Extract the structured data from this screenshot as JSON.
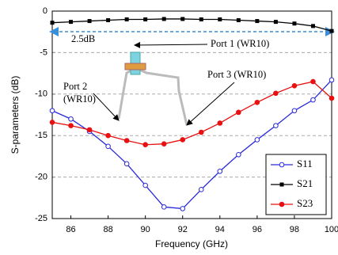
{
  "chart_data": {
    "type": "line",
    "x_label": "Frequency (GHz)",
    "y_label": "S-parameters (dB)",
    "x": [
      85,
      86,
      87,
      88,
      89,
      90,
      91,
      92,
      93,
      94,
      95,
      96,
      97,
      98,
      99,
      100
    ],
    "series": [
      {
        "name": "S11",
        "color": "#2a2ad8",
        "marker": "open-circle",
        "values": [
          -12,
          -13,
          -14.5,
          -16.3,
          -18.4,
          -21,
          -23.6,
          -23.8,
          -21.5,
          -19.3,
          -17.3,
          -15.5,
          -13.8,
          -12,
          -10.7,
          -8.3
        ]
      },
      {
        "name": "S21",
        "color": "#000000",
        "marker": "square",
        "values": [
          -1.4,
          -1.3,
          -1.2,
          -1.1,
          -1.0,
          -1.0,
          -0.95,
          -0.95,
          -1.0,
          -1.0,
          -1.1,
          -1.2,
          -1.3,
          -1.5,
          -1.8,
          -2.4
        ]
      },
      {
        "name": "S23",
        "color": "#e81010",
        "marker": "circle",
        "values": [
          -13.4,
          -13.8,
          -14.3,
          -15.0,
          -15.6,
          -16.1,
          -16.0,
          -15.5,
          -14.6,
          -13.5,
          -12.2,
          -11.0,
          -9.9,
          -9.0,
          -8.5,
          -10.5
        ]
      }
    ],
    "xlim": [
      85,
      100
    ],
    "ylim": [
      -25,
      0
    ],
    "xticks": [
      86,
      88,
      90,
      92,
      94,
      96,
      98,
      100
    ],
    "yticks": [
      -25,
      -20,
      -15,
      -10,
      -5,
      0
    ],
    "grid": true,
    "legend": "lower right",
    "annotations": {
      "span": "2.5dB",
      "port1": "Port 1 (WR10)",
      "port2": [
        "Port 2",
        "(WR10)"
      ],
      "port3": "Port 3 (WR10)"
    }
  }
}
